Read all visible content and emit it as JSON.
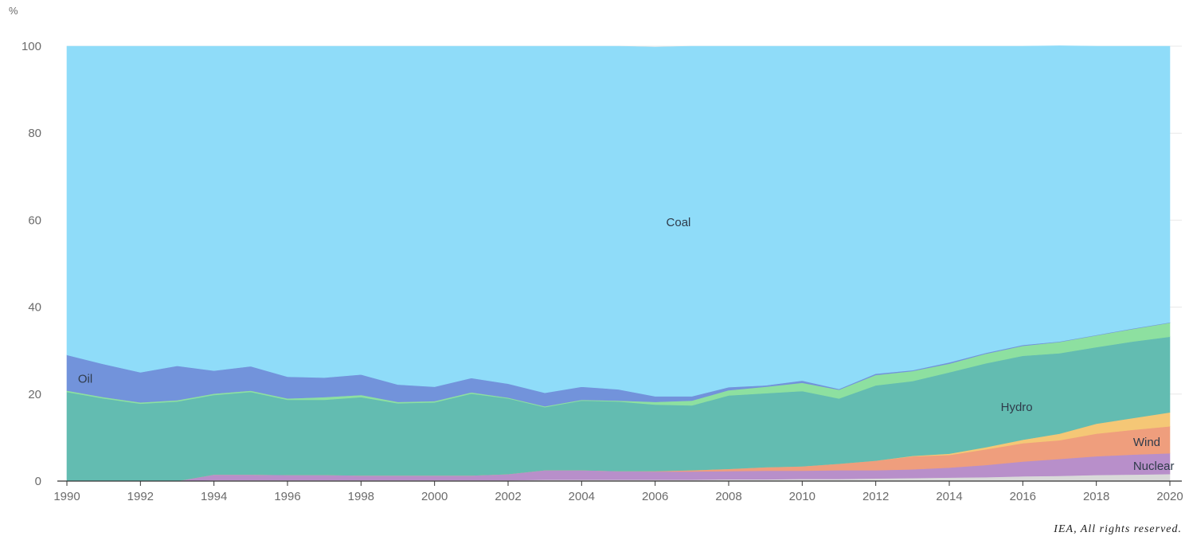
{
  "credit": "IEA, All rights reserved.",
  "chart_data": {
    "type": "area",
    "stacked": true,
    "normalized": true,
    "unit_label": "%",
    "x": [
      1990,
      1991,
      1992,
      1993,
      1994,
      1995,
      1996,
      1997,
      1998,
      1999,
      2000,
      2001,
      2002,
      2003,
      2004,
      2005,
      2006,
      2007,
      2008,
      2009,
      2010,
      2011,
      2012,
      2013,
      2014,
      2015,
      2016,
      2017,
      2018,
      2019,
      2020
    ],
    "x_ticks": [
      "1990",
      "1992",
      "1994",
      "1996",
      "1998",
      "2000",
      "2002",
      "2004",
      "2006",
      "2008",
      "2010",
      "2012",
      "2014",
      "2016",
      "2018",
      "2020"
    ],
    "ylim": [
      0,
      100
    ],
    "y_ticks": [
      "0",
      "20",
      "40",
      "60",
      "80",
      "100"
    ],
    "grid": true,
    "series": [
      {
        "name": "",
        "color": "#d9d9d9",
        "values": [
          0,
          0,
          0,
          0,
          0.2,
          0.2,
          0.2,
          0.2,
          0.2,
          0.2,
          0.2,
          0.2,
          0.2,
          0.3,
          0.3,
          0.3,
          0.3,
          0.3,
          0.4,
          0.4,
          0.5,
          0.5,
          0.6,
          0.7,
          0.8,
          0.9,
          1.1,
          1.2,
          1.4,
          1.5,
          1.6
        ]
      },
      {
        "name": "Nuclear",
        "color": "#b88fca",
        "values": [
          0,
          0,
          0,
          0,
          1.3,
          1.3,
          1.2,
          1.2,
          1.1,
          1.1,
          1.1,
          1.1,
          1.4,
          2.2,
          2.2,
          2.0,
          1.9,
          1.9,
          1.9,
          2.0,
          1.9,
          2.0,
          1.9,
          2.0,
          2.3,
          2.8,
          3.4,
          3.9,
          4.3,
          4.6,
          4.8
        ]
      },
      {
        "name": "Wind",
        "color": "#ef9e7d",
        "values": [
          0,
          0,
          0,
          0,
          0,
          0,
          0,
          0,
          0,
          0,
          0,
          0,
          0,
          0,
          0,
          0,
          0.1,
          0.3,
          0.5,
          0.8,
          1.0,
          1.5,
          2.2,
          3.0,
          2.9,
          3.6,
          4.2,
          4.3,
          5.2,
          5.7,
          6.2
        ]
      },
      {
        "name": "",
        "color": "#f5c776",
        "values": [
          0,
          0,
          0,
          0,
          0,
          0,
          0,
          0,
          0,
          0,
          0,
          0,
          0,
          0,
          0,
          0,
          0,
          0,
          0,
          0,
          0,
          0,
          0,
          0.1,
          0.3,
          0.5,
          0.8,
          1.5,
          2.3,
          2.7,
          3.2
        ]
      },
      {
        "name": "Hydro",
        "color": "#63bcb1",
        "values": [
          20.5,
          19.0,
          17.8,
          18.3,
          18.3,
          19.0,
          17.3,
          17.3,
          18.0,
          16.6,
          16.8,
          18.8,
          17.4,
          14.5,
          16.0,
          16.0,
          15.3,
          14.9,
          16.9,
          17.0,
          17.3,
          15.0,
          17.3,
          17.2,
          18.7,
          19.3,
          19.3,
          18.5,
          17.6,
          17.6,
          17.4
        ]
      },
      {
        "name": "",
        "color": "#8de0a0",
        "values": [
          0.3,
          0.3,
          0.3,
          0.3,
          0.3,
          0.3,
          0.3,
          0.6,
          0.5,
          0.3,
          0.3,
          0.3,
          0.2,
          0.2,
          0.2,
          0.2,
          0.6,
          1.1,
          1.2,
          1.5,
          1.9,
          2.0,
          2.4,
          2.3,
          2.0,
          2.2,
          2.3,
          2.6,
          2.7,
          2.9,
          3.2
        ]
      },
      {
        "name": "Oil",
        "color": "#7293db",
        "values": [
          8.2,
          7.6,
          6.9,
          7.9,
          5.3,
          5.6,
          5.0,
          4.5,
          4.7,
          4.0,
          3.3,
          3.3,
          3.2,
          3.1,
          3.0,
          2.6,
          1.3,
          1.0,
          0.7,
          0.3,
          0.5,
          0.2,
          0.3,
          0.2,
          0.3,
          0.2,
          0.2,
          0.1,
          0.1,
          0.1,
          0.1
        ]
      },
      {
        "name": "Coal",
        "color": "#8fdcf9",
        "values": [
          71.0,
          73.1,
          75.0,
          73.5,
          74.6,
          73.6,
          76.0,
          76.2,
          75.5,
          77.8,
          78.3,
          76.3,
          77.6,
          79.7,
          78.3,
          78.9,
          80.3,
          80.5,
          78.4,
          78.0,
          76.9,
          78.8,
          75.3,
          74.5,
          72.7,
          70.5,
          68.7,
          68.0,
          66.4,
          64.9,
          63.5
        ]
      }
    ]
  }
}
